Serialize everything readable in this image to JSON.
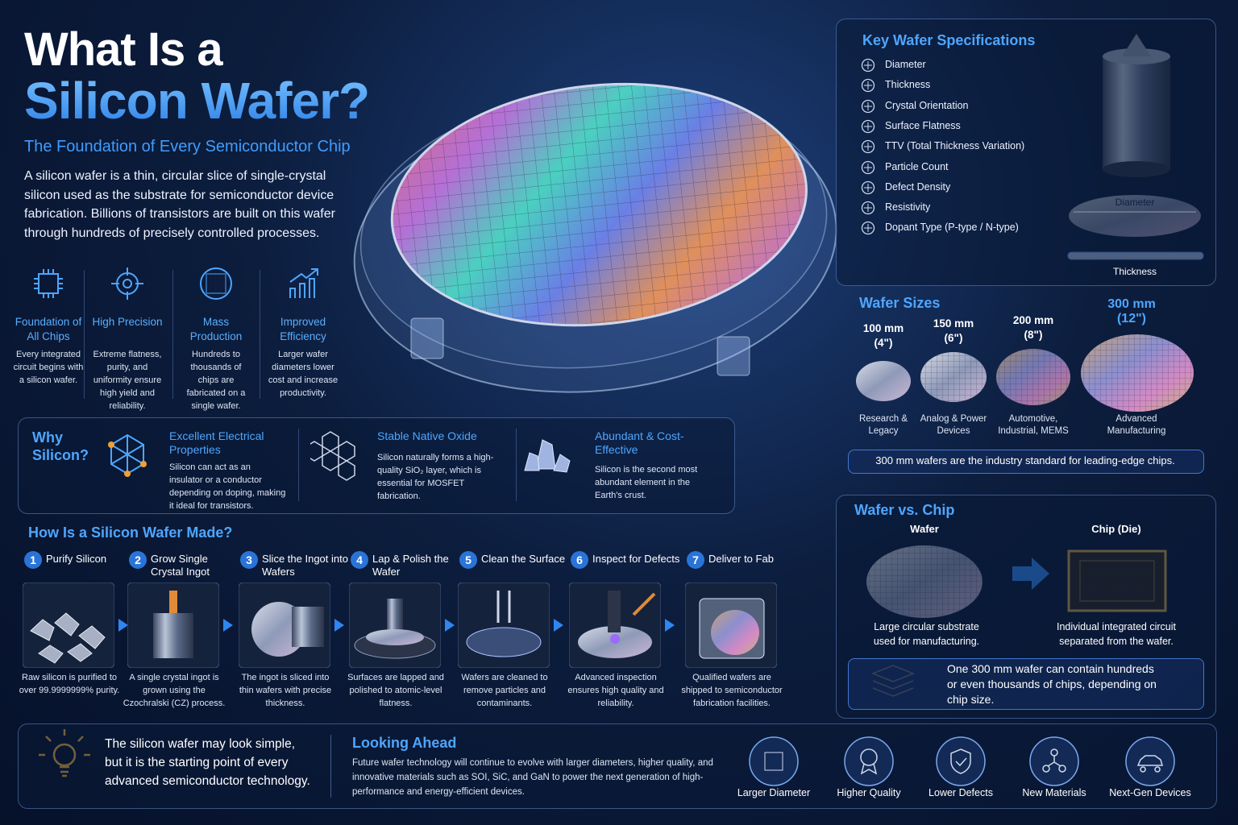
{
  "header": {
    "title_line1": "What Is a",
    "title_line2": "Silicon Wafer?",
    "subtitle": "The Foundation of Every Semiconductor Chip",
    "intro": "A silicon wafer is a thin, circular slice of single-crystal silicon used as the substrate for semiconductor device fabrication. Billions of transistors are built on this wafer through hundreds of precisely controlled processes."
  },
  "features": [
    {
      "title": "Foundation of All Chips",
      "text": "Every integrated circuit begins with a silicon wafer."
    },
    {
      "title": "High Precision",
      "text": "Extreme flatness, purity, and uniformity ensure high yield and reliability."
    },
    {
      "title": "Mass Production",
      "text": "Hundreds to thousands of chips are fabricated on a single wafer."
    },
    {
      "title": "Improved Efficiency",
      "text": "Larger wafer diameters lower cost and increase productivity."
    }
  ],
  "why": {
    "title": "Why Silicon?",
    "items": [
      {
        "title": "Excellent Electrical Properties",
        "text": "Silicon can act as an insulator or a conductor depending on doping, making it ideal for transistors."
      },
      {
        "title": "Stable Native Oxide",
        "text": "Silicon naturally forms a high-quality SiO₂ layer, which is essential for MOSFET fabrication."
      },
      {
        "title": "Abundant & Cost-Effective",
        "text": "Silicon is the second most abundant element in the Earth's crust."
      }
    ]
  },
  "process": {
    "title": "How Is a Silicon Wafer Made?",
    "steps": [
      {
        "number": "1",
        "title": "Purify Silicon",
        "text": "Raw silicon is purified to over 99.9999999% purity."
      },
      {
        "number": "2",
        "title": "Grow Single Crystal Ingot",
        "text": "A single crystal ingot is grown using the Czochralski (CZ) process."
      },
      {
        "number": "3",
        "title": "Slice the Ingot into Wafers",
        "text": "The ingot is sliced into thin wafers with precise thickness."
      },
      {
        "number": "4",
        "title": "Lap & Polish the Wafer",
        "text": "Surfaces are lapped and polished to atomic-level flatness."
      },
      {
        "number": "5",
        "title": "Clean the Surface",
        "text": "Wafers are cleaned to remove particles and contaminants."
      },
      {
        "number": "6",
        "title": "Inspect for Defects",
        "text": "Advanced inspection ensures high quality and reliability."
      },
      {
        "number": "7",
        "title": "Deliver to Fab",
        "text": "Qualified wafers are shipped to semiconductor fabrication facilities."
      }
    ]
  },
  "specs": {
    "title": "Key Wafer Specifications",
    "items": [
      "Diameter",
      "Thickness",
      "Crystal Orientation",
      "Surface Flatness",
      "TTV (Total Thickness Variation)",
      "Particle Count",
      "Defect Density",
      "Resistivity",
      "Dopant Type (P-type / N-type)"
    ],
    "diameter_label": "Diameter",
    "thickness_label": "Thickness"
  },
  "sizes": {
    "title": "Wafer Sizes",
    "items": [
      {
        "size": "100 mm",
        "inch": "(4\")",
        "use": "Research & Legacy"
      },
      {
        "size": "150 mm",
        "inch": "(6\")",
        "use": "Analog & Power Devices"
      },
      {
        "size": "200 mm",
        "inch": "(8\")",
        "use": "Automotive, Industrial, MEMS"
      },
      {
        "size": "300 mm",
        "inch": "(12\")",
        "use": "Advanced Manufacturing"
      }
    ],
    "note": "300 mm wafers are the industry standard for leading-edge chips."
  },
  "comparison": {
    "title": "Wafer vs. Chip",
    "wafer": {
      "label": "Wafer",
      "text": "Large circular substrate used for manufacturing."
    },
    "chip": {
      "label": "Chip (Die)",
      "text": "Individual integrated circuit separated from the wafer."
    },
    "note": "One 300 mm wafer can contain hundreds or even thousands of chips, depending on chip size."
  },
  "footer": {
    "quote": "The silicon wafer may look simple, but it is the starting point of every advanced semiconductor technology.",
    "ahead_title": "Looking Ahead",
    "ahead_text": "Future wafer technology will continue to evolve with larger diameters, higher quality, and innovative materials such as SOI, SiC, and GaN to power the next generation of high-performance and energy-efficient devices.",
    "trends": [
      "Larger Diameter",
      "Higher Quality",
      "Lower Defects",
      "New Materials",
      "Next-Gen Devices"
    ]
  }
}
